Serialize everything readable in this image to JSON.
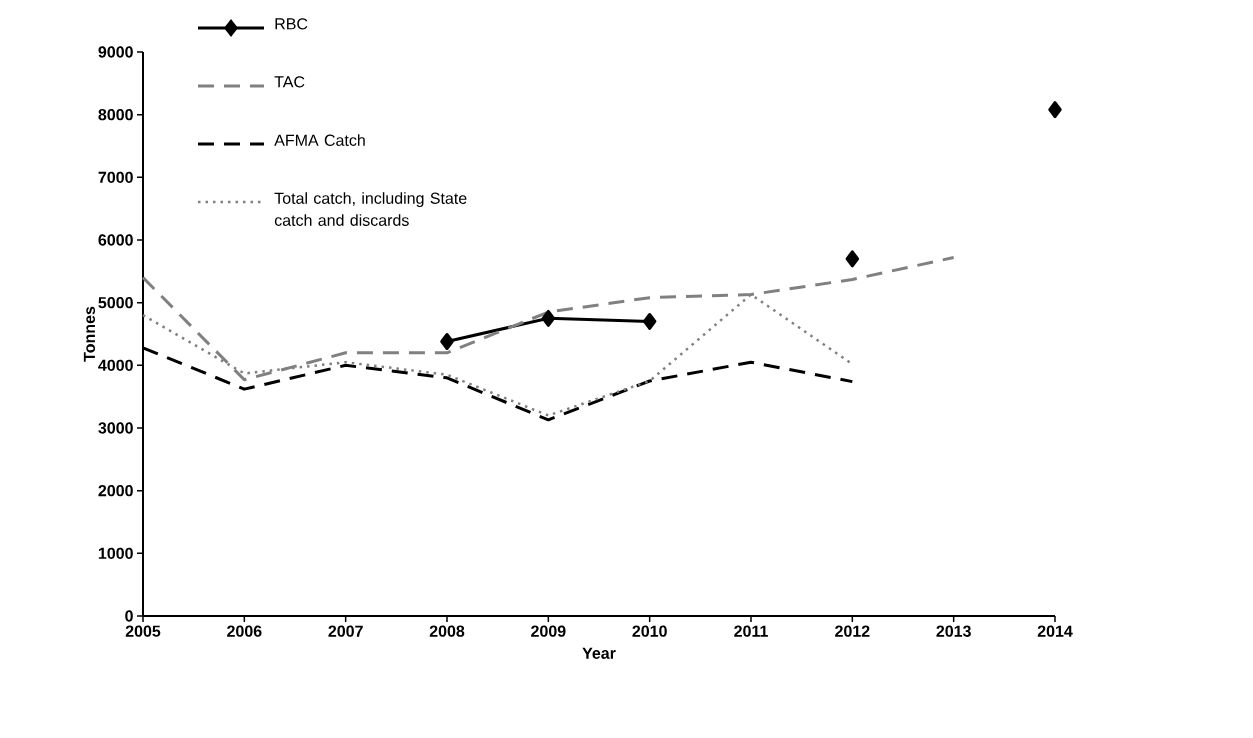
{
  "chart_data": {
    "type": "line",
    "xlabel": "Year",
    "ylabel": "Tonnes",
    "x": [
      2005,
      2006,
      2007,
      2008,
      2009,
      2010,
      2011,
      2012,
      2013,
      2014
    ],
    "xlim": [
      2005,
      2014
    ],
    "xticks": [
      2005,
      2006,
      2007,
      2008,
      2009,
      2010,
      2011,
      2012,
      2013,
      2014
    ],
    "ylim": [
      0,
      9000
    ],
    "yticks": [
      0,
      1000,
      2000,
      3000,
      4000,
      5000,
      6000,
      7000,
      8000,
      9000
    ],
    "grid": false,
    "legend": "top left",
    "series": [
      {
        "name": "RBC",
        "color": "#000000",
        "line_style": "solid",
        "marker": "diamond",
        "values": [
          null,
          null,
          null,
          4380,
          4750,
          4700,
          null,
          5700,
          null,
          8080
        ]
      },
      {
        "name": "TAC",
        "color": "#808080",
        "line_style": "dashed",
        "marker": "none",
        "values": [
          5400,
          3770,
          4200,
          4200,
          4850,
          5080,
          5130,
          5370,
          5720,
          null
        ]
      },
      {
        "name": "AFMA Catch",
        "color": "#000000",
        "line_style": "dashed",
        "marker": "none",
        "values": [
          4280,
          3620,
          4000,
          3800,
          3130,
          3750,
          4050,
          3740,
          null,
          null
        ]
      },
      {
        "name": "Total catch, including State catch and discards",
        "color": "#808080",
        "line_style": "dotted",
        "marker": "none",
        "values": [
          4800,
          3870,
          4050,
          3850,
          3200,
          3750,
          5130,
          4020,
          null,
          null
        ]
      }
    ]
  }
}
